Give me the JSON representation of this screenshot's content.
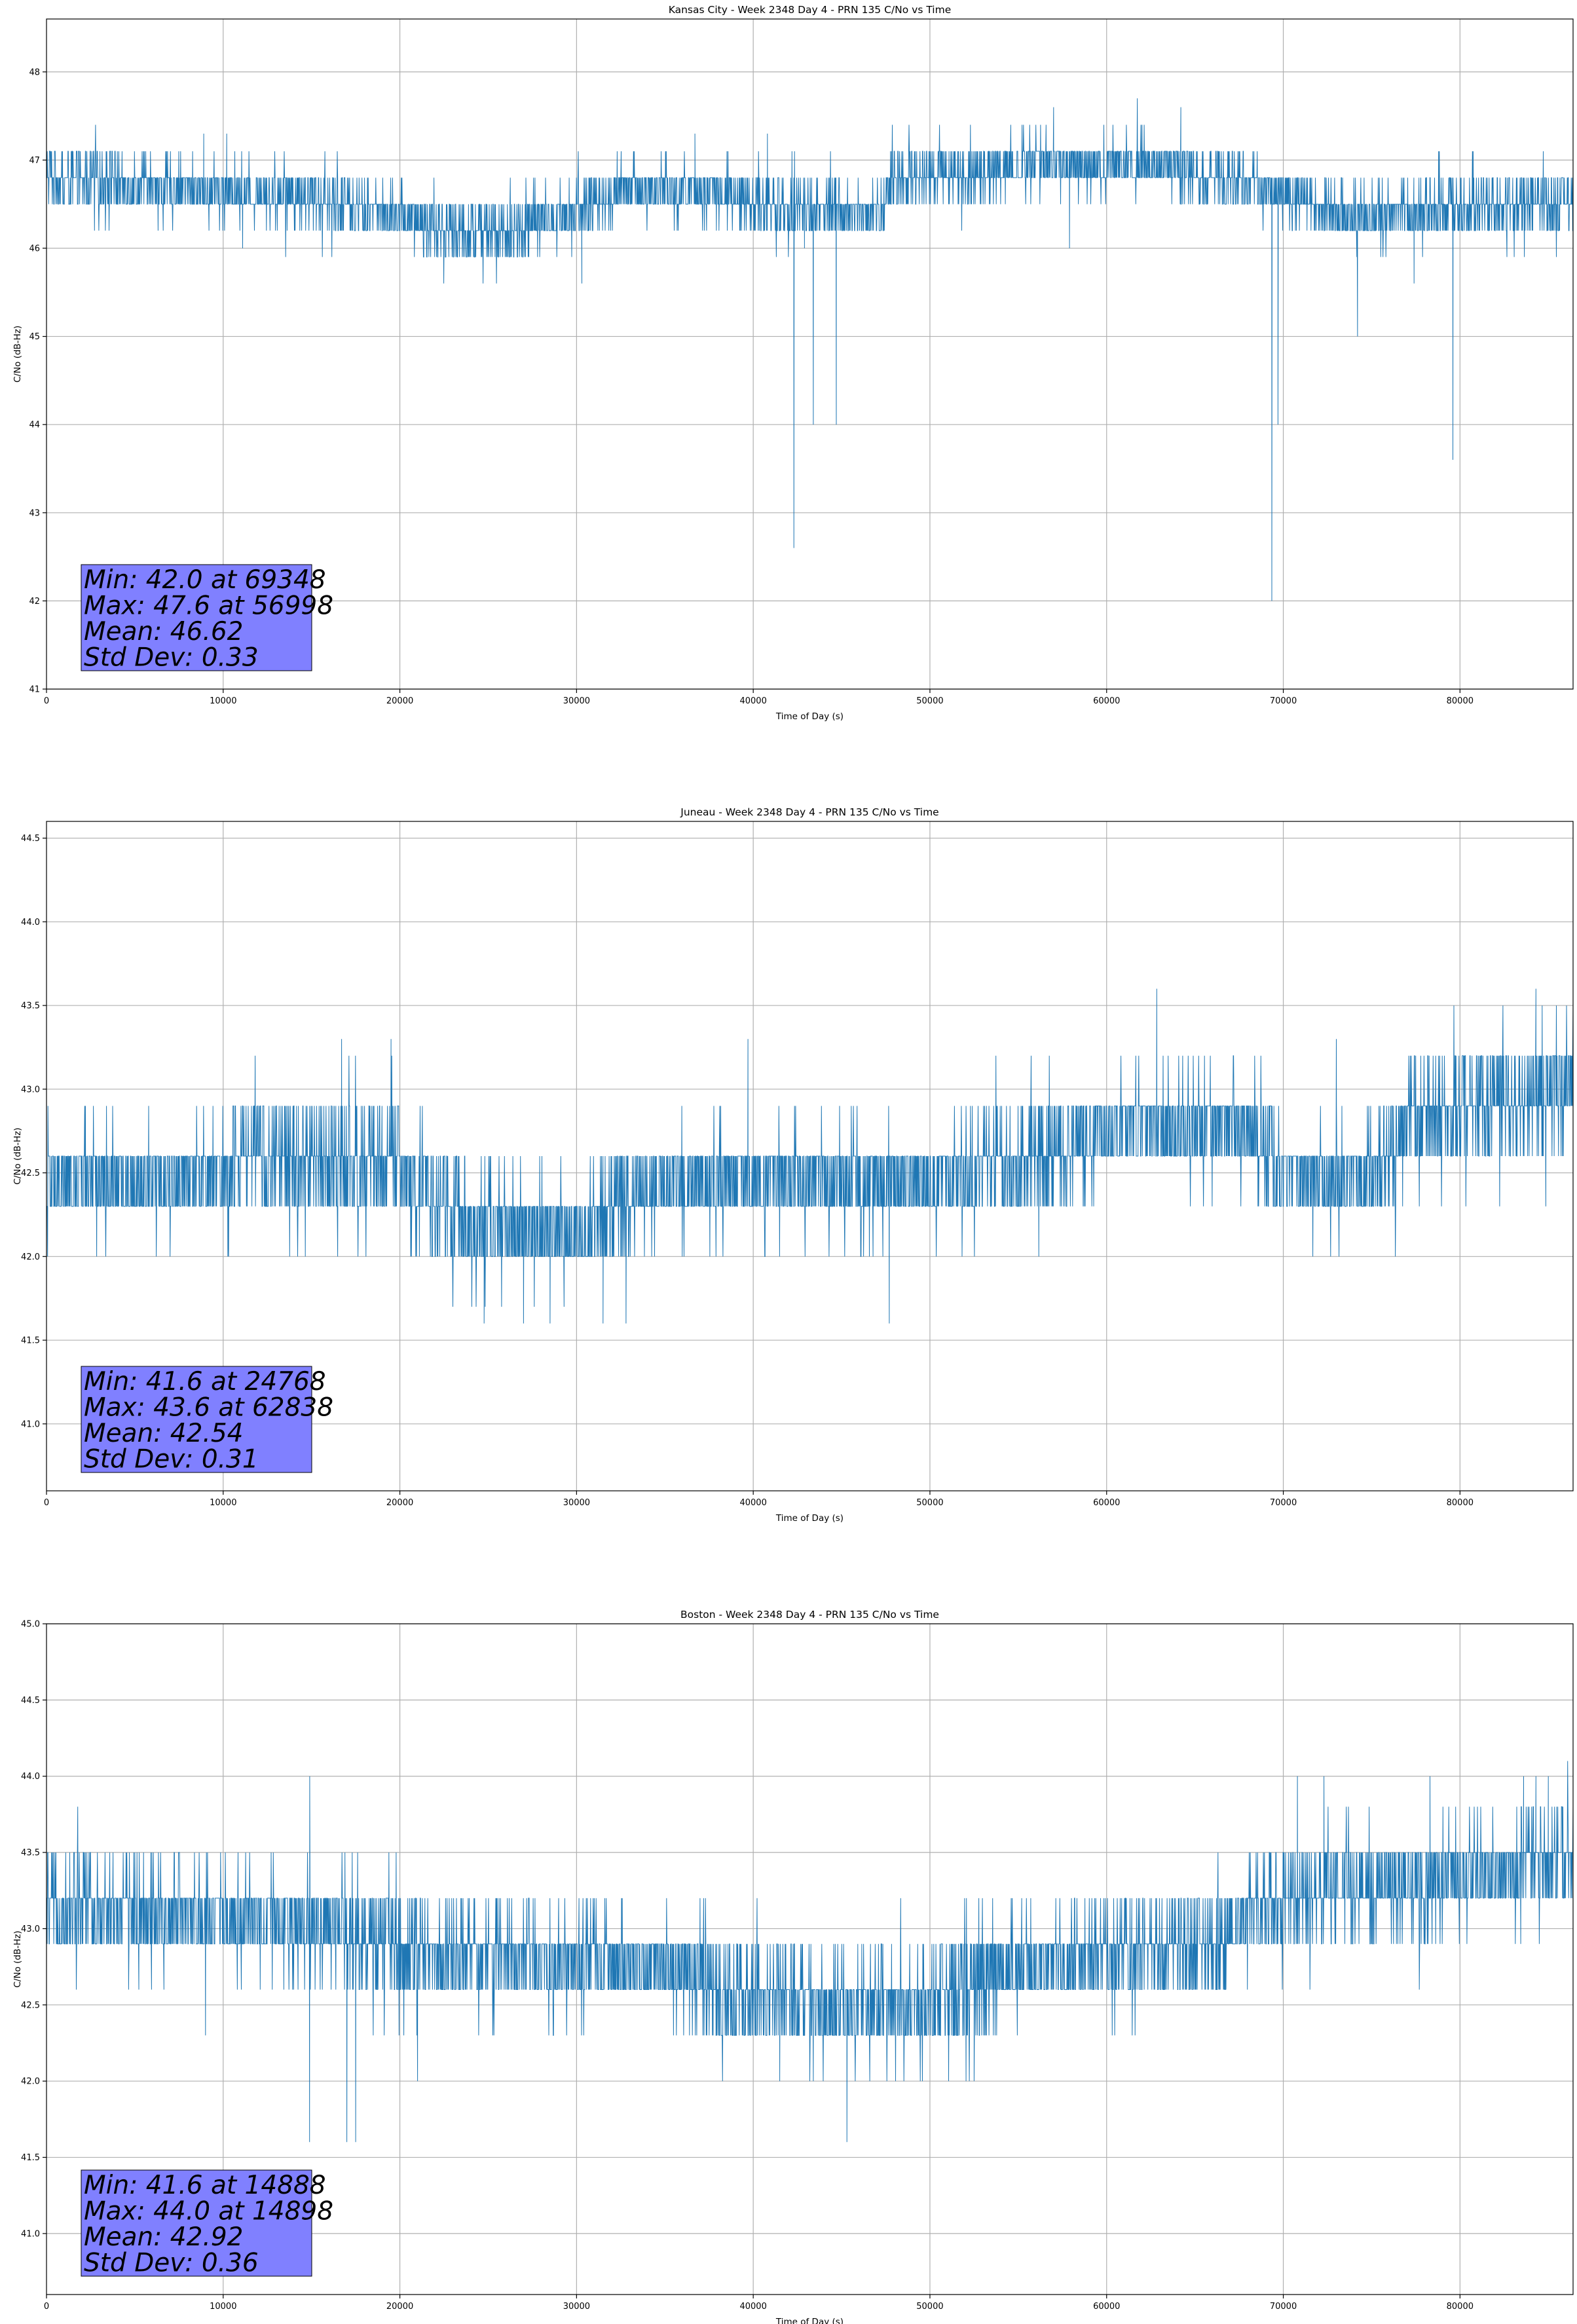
{
  "chart_data": [
    {
      "type": "line",
      "title": "Kansas City - Week 2348 Day 4 - PRN 135 C/No vs Time",
      "xlabel": "Time of Day (s)",
      "ylabel": "C/No (dB-Hz)",
      "xlim": [
        0,
        86400
      ],
      "ylim": [
        41,
        48.6
      ],
      "xticks": [
        0,
        10000,
        20000,
        30000,
        40000,
        50000,
        60000,
        70000,
        80000
      ],
      "xtick_labels": [
        "0",
        "10000",
        "20000",
        "30000",
        "40000",
        "50000",
        "60000",
        "70000",
        "80000"
      ],
      "yticks": [
        41,
        42,
        43,
        44,
        45,
        46,
        47,
        48
      ],
      "ytick_labels": [
        "41",
        "42",
        "43",
        "44",
        "45",
        "46",
        "47",
        "48"
      ],
      "grid": true,
      "color": "#1f77b4",
      "stats_box_color": "#8080ff",
      "stats_box_position": "bottom-left",
      "stats": {
        "min": "Min: 42.0 at 69348",
        "max": "Max: 47.6 at 56998",
        "mean": "Mean: 46.62",
        "std": "Std Dev: 0.33"
      },
      "series": [
        {
          "name": "C/No",
          "step": 0.3,
          "segments": [
            [
              0,
              46.8
            ],
            [
              13500,
              46.6
            ],
            [
              17000,
              46.5
            ],
            [
              19500,
              46.4
            ],
            [
              22500,
              46.2
            ],
            [
              27000,
              46.2
            ],
            [
              29500,
              46.4
            ],
            [
              31500,
              46.5
            ],
            [
              33000,
              46.7
            ],
            [
              38000,
              46.6
            ],
            [
              40000,
              46.5
            ],
            [
              47000,
              46.4
            ],
            [
              48000,
              46.8
            ],
            [
              54000,
              46.9
            ],
            [
              56000,
              47.0
            ],
            [
              60000,
              46.9
            ],
            [
              62000,
              47.0
            ],
            [
              66000,
              46.8
            ],
            [
              70000,
              46.6
            ],
            [
              73000,
              46.4
            ],
            [
              76000,
              46.4
            ],
            [
              80000,
              46.5
            ],
            [
              86400,
              46.5
            ]
          ],
          "outliers": [
            [
              42300,
              42.6
            ],
            [
              43400,
              44.0
            ],
            [
              44700,
              44.0
            ],
            [
              69348,
              42.0
            ],
            [
              69700,
              44.0
            ],
            [
              74200,
              45.0
            ],
            [
              79600,
              43.6
            ],
            [
              30300,
              45.6
            ],
            [
              77400,
              45.6
            ],
            [
              56998,
              47.6
            ],
            [
              64200,
              47.6
            ],
            [
              8900,
              47.3
            ],
            [
              10200,
              47.3
            ],
            [
              36700,
              47.3
            ],
            [
              40800,
              47.3
            ],
            [
              11100,
              46.0
            ],
            [
              42900,
              46.0
            ],
            [
              57900,
              46.0
            ]
          ]
        }
      ]
    },
    {
      "type": "line",
      "title": "Juneau - Week 2348 Day 4 - PRN 135 C/No vs Time",
      "xlabel": "Time of Day (s)",
      "ylabel": "C/No (dB-Hz)",
      "xlim": [
        0,
        86400
      ],
      "ylim": [
        40.6,
        44.6
      ],
      "xticks": [
        0,
        10000,
        20000,
        30000,
        40000,
        50000,
        60000,
        70000,
        80000
      ],
      "xtick_labels": [
        "0",
        "10000",
        "20000",
        "30000",
        "40000",
        "50000",
        "60000",
        "70000",
        "80000"
      ],
      "yticks": [
        41.0,
        41.5,
        42.0,
        42.5,
        43.0,
        43.5,
        44.0,
        44.5
      ],
      "ytick_labels": [
        "41.0",
        "41.5",
        "42.0",
        "42.5",
        "43.0",
        "43.5",
        "44.0",
        "44.5"
      ],
      "grid": true,
      "color": "#1f77b4",
      "stats_box_color": "#8080ff",
      "stats_box_position": "bottom-left",
      "stats": {
        "min": "Min: 41.6 at 24768",
        "max": "Max: 43.6 at 62838",
        "mean": "Mean: 42.54",
        "std": "Std Dev: 0.31"
      },
      "series": [
        {
          "name": "C/No",
          "step": 0.3,
          "segments": [
            [
              0,
              42.45
            ],
            [
              10000,
              42.45
            ],
            [
              10500,
              42.6
            ],
            [
              20000,
              42.55
            ],
            [
              20500,
              42.4
            ],
            [
              24000,
              42.2
            ],
            [
              30000,
              42.15
            ],
            [
              33500,
              42.4
            ],
            [
              36000,
              42.45
            ],
            [
              50000,
              42.45
            ],
            [
              57000,
              42.6
            ],
            [
              61000,
              42.8
            ],
            [
              68000,
              42.75
            ],
            [
              70500,
              42.45
            ],
            [
              75500,
              42.5
            ],
            [
              77000,
              42.8
            ],
            [
              81000,
              42.9
            ],
            [
              86400,
              43.0
            ]
          ],
          "outliers": [
            [
              24768,
              41.6
            ],
            [
              27000,
              41.6
            ],
            [
              28500,
              41.6
            ],
            [
              31500,
              41.6
            ],
            [
              32800,
              41.6
            ],
            [
              47700,
              41.6
            ],
            [
              62838,
              43.6
            ],
            [
              84300,
              43.6
            ],
            [
              16700,
              43.3
            ],
            [
              19500,
              43.3
            ],
            [
              39700,
              43.3
            ],
            [
              73000,
              43.3
            ]
          ]
        }
      ]
    },
    {
      "type": "line",
      "title": "Boston - Week 2348 Day 4 - PRN 135 C/No vs Time",
      "xlabel": "Time of Day (s)",
      "ylabel": "C/No (dB-Hz)",
      "xlim": [
        0,
        86400
      ],
      "ylim": [
        40.6,
        45.0
      ],
      "xticks": [
        0,
        10000,
        20000,
        30000,
        40000,
        50000,
        60000,
        70000,
        80000
      ],
      "xtick_labels": [
        "0",
        "10000",
        "20000",
        "30000",
        "40000",
        "50000",
        "60000",
        "70000",
        "80000"
      ],
      "yticks": [
        41.0,
        41.5,
        42.0,
        42.5,
        43.0,
        43.5,
        44.0,
        44.5,
        45.0
      ],
      "ytick_labels": [
        "41.0",
        "41.5",
        "42.0",
        "42.5",
        "43.0",
        "43.5",
        "44.0",
        "44.5",
        "45.0"
      ],
      "grid": true,
      "color": "#1f77b4",
      "stats_box_color": "#8080ff",
      "stats_box_position": "bottom-left",
      "stats": {
        "min": "Min: 41.6 at 14888",
        "max": "Max: 44.0 at 14898",
        "mean": "Mean: 42.92",
        "std": "Std Dev: 0.36"
      },
      "series": [
        {
          "name": "C/No",
          "step": 0.3,
          "segments": [
            [
              0,
              43.15
            ],
            [
              9000,
              43.1
            ],
            [
              14000,
              43.0
            ],
            [
              18000,
              42.95
            ],
            [
              22000,
              42.85
            ],
            [
              30000,
              42.8
            ],
            [
              36000,
              42.75
            ],
            [
              38500,
              42.55
            ],
            [
              47000,
              42.5
            ],
            [
              50000,
              42.5
            ],
            [
              53500,
              42.7
            ],
            [
              61000,
              42.85
            ],
            [
              66500,
              42.9
            ],
            [
              68000,
              43.1
            ],
            [
              72000,
              43.25
            ],
            [
              80000,
              43.3
            ],
            [
              83000,
              43.4
            ],
            [
              86400,
              43.45
            ]
          ],
          "outliers": [
            [
              14888,
              41.6
            ],
            [
              14898,
              44.0
            ],
            [
              17000,
              41.6
            ],
            [
              17500,
              41.6
            ],
            [
              45300,
              41.6
            ],
            [
              70800,
              44.0
            ],
            [
              72300,
              44.0
            ],
            [
              78300,
              44.0
            ],
            [
              83600,
              44.0
            ],
            [
              84300,
              44.0
            ],
            [
              85000,
              44.0
            ],
            [
              41500,
              42.0
            ],
            [
              43400,
              42.0
            ],
            [
              52500,
              42.0
            ],
            [
              21000,
              42.0
            ],
            [
              9000,
              42.3
            ]
          ]
        }
      ]
    }
  ]
}
